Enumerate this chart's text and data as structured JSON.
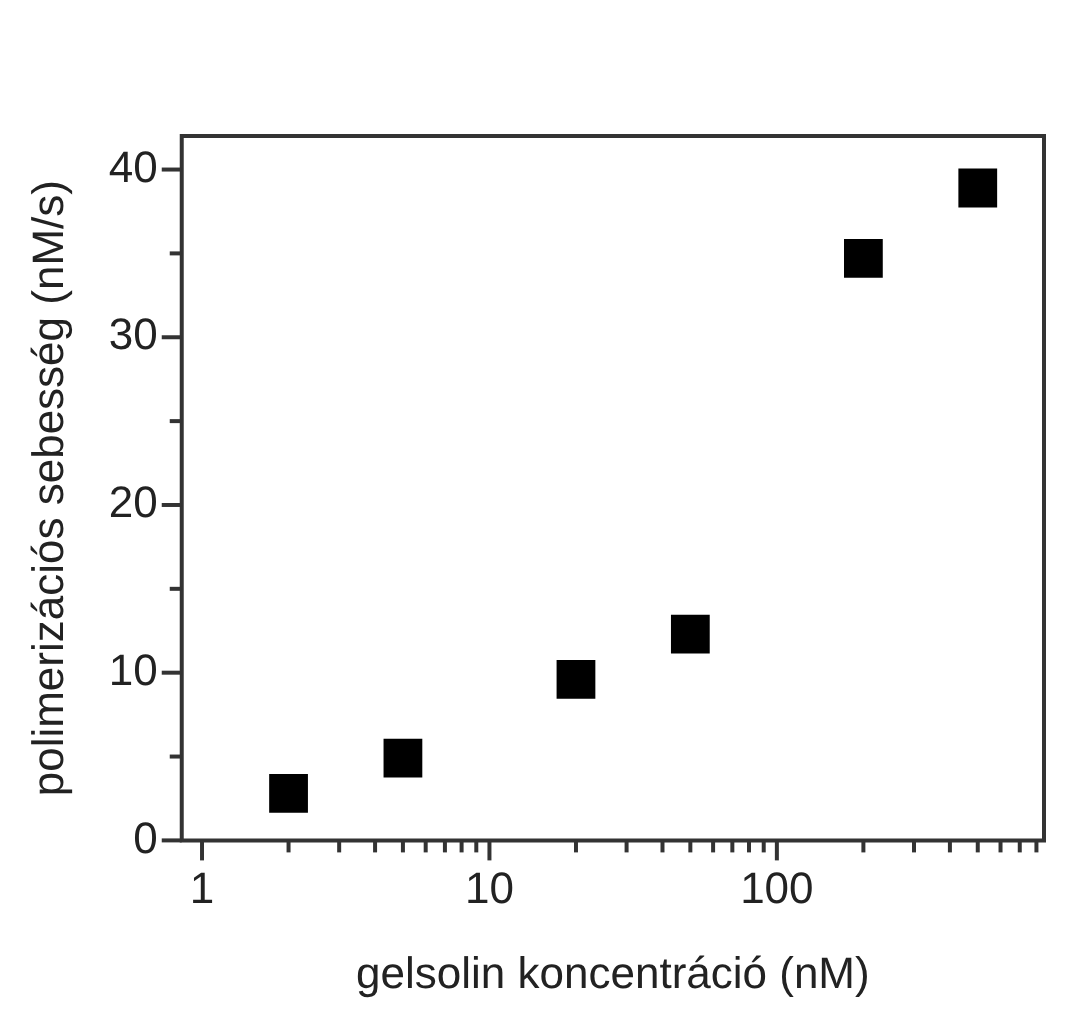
{
  "chart_data": {
    "type": "scatter",
    "xlabel": "gelsolin koncentráció (nM)",
    "ylabel": "polimerizációs sebesség (nM/s)",
    "x": [
      2,
      5,
      20,
      50,
      200,
      500
    ],
    "series": [
      {
        "color": "#000000",
        "values": [
          2.8,
          4.9,
          9.6,
          12.3,
          34.7,
          38.9
        ]
      }
    ],
    "log": "x",
    "marker": "square",
    "legend": false,
    "grid": false,
    "xlim": [
      0.85,
      850
    ],
    "xticks": [
      1,
      {
        "value": 2,
        "label": null
      },
      {
        "value": 3,
        "label": null
      },
      {
        "value": 4,
        "label": null
      },
      {
        "value": 5,
        "label": null
      },
      {
        "value": 6,
        "label": null
      },
      {
        "value": 7,
        "label": null
      },
      {
        "value": 8,
        "label": null
      },
      {
        "value": 9,
        "label": null
      },
      10,
      {
        "value": 20,
        "label": null
      },
      {
        "value": 30,
        "label": null
      },
      {
        "value": 40,
        "label": null
      },
      {
        "value": 50,
        "label": null
      },
      {
        "value": 60,
        "label": null
      },
      {
        "value": 70,
        "label": null
      },
      {
        "value": 80,
        "label": null
      },
      {
        "value": 90,
        "label": null
      },
      100,
      {
        "value": 200,
        "label": null
      },
      {
        "value": 300,
        "label": null
      },
      {
        "value": 400,
        "label": null
      },
      {
        "value": 500,
        "label": null
      },
      {
        "value": 600,
        "label": null
      },
      {
        "value": 700,
        "label": null
      },
      {
        "value": 800,
        "label": null
      }
    ],
    "ylim": [
      0,
      42
    ],
    "yticks": [
      0,
      {
        "value": 5,
        "label": null
      },
      10,
      {
        "value": 15,
        "label": null
      },
      20,
      {
        "value": 25,
        "label": null
      },
      30,
      {
        "value": 35,
        "label": null
      },
      40
    ]
  }
}
